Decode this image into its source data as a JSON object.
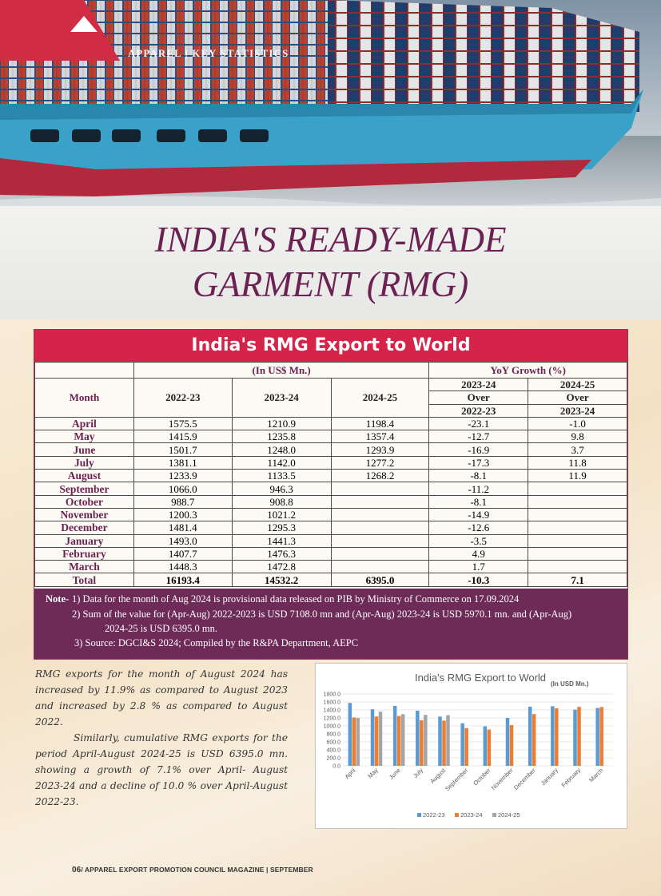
{
  "section_label": "APPAREL | KEY STATISTICS",
  "title_line1": "INDIA'S READY-MADE",
  "title_line2": "GARMENT (RMG)",
  "table": {
    "title": "India's RMG Export to World",
    "unit_header": "(In US$ Mn.)",
    "growth_header": "YoY Growth (%)",
    "month_header": "Month",
    "years": [
      "2022-23",
      "2023-24",
      "2024-25"
    ],
    "growth_cols": [
      {
        "top": "2023-24",
        "mid": "Over",
        "bottom": "2022-23"
      },
      {
        "top": "2024-25",
        "mid": "Over",
        "bottom": "2023-24"
      }
    ],
    "rows": [
      {
        "month": "April",
        "y1": "1575.5",
        "y2": "1210.9",
        "y3": "1198.4",
        "g1": "-23.1",
        "g2": "-1.0"
      },
      {
        "month": "May",
        "y1": "1415.9",
        "y2": "1235.8",
        "y3": "1357.4",
        "g1": "-12.7",
        "g2": "9.8"
      },
      {
        "month": "June",
        "y1": "1501.7",
        "y2": "1248.0",
        "y3": "1293.9",
        "g1": "-16.9",
        "g2": "3.7"
      },
      {
        "month": "July",
        "y1": "1381.1",
        "y2": "1142.0",
        "y3": "1277.2",
        "g1": "-17.3",
        "g2": "11.8"
      },
      {
        "month": "August",
        "y1": "1233.9",
        "y2": "1133.5",
        "y3": "1268.2",
        "g1": "-8.1",
        "g2": "11.9"
      },
      {
        "month": "September",
        "y1": "1066.0",
        "y2": "946.3",
        "y3": "",
        "g1": "-11.2",
        "g2": ""
      },
      {
        "month": "October",
        "y1": "988.7",
        "y2": "908.8",
        "y3": "",
        "g1": "-8.1",
        "g2": ""
      },
      {
        "month": "November",
        "y1": "1200.3",
        "y2": "1021.2",
        "y3": "",
        "g1": "-14.9",
        "g2": ""
      },
      {
        "month": "December",
        "y1": "1481.4",
        "y2": "1295.3",
        "y3": "",
        "g1": "-12.6",
        "g2": ""
      },
      {
        "month": "January",
        "y1": "1493.0",
        "y2": "1441.3",
        "y3": "",
        "g1": "-3.5",
        "g2": ""
      },
      {
        "month": "February",
        "y1": "1407.7",
        "y2": "1476.3",
        "y3": "",
        "g1": "4.9",
        "g2": ""
      },
      {
        "month": "March",
        "y1": "1448.3",
        "y2": "1472.8",
        "y3": "",
        "g1": "1.7",
        "g2": ""
      }
    ],
    "total": {
      "month": "Total",
      "y1": "16193.4",
      "y2": "14532.2",
      "y3": "6395.0",
      "g1": "-10.3",
      "g2": "7.1"
    }
  },
  "notes": {
    "label": "Note-",
    "n1": "1) Data for the month of Aug 2024 is provisional data released on PIB by Ministry of Commerce on 17.09.2024",
    "n2a": "2) Sum of the value for (Apr-Aug) 2022-2023 is USD 7108.0 mn and (Apr-Aug) 2023-24 is USD 5970.1 mn. and (Apr-Aug)",
    "n2b": "2024-25 is USD 6395.0 mn.",
    "n3": "3) Source: DGCI&S 2024; Compiled by the  R&PA Department, AEPC"
  },
  "body": {
    "p1": "RMG exports for the month of August 2024 has increased by 11.9% as compared to August 2023 and increased by 2.8 % as compared to August 2022.",
    "p2": "Similarly, cumulative RMG exports for the period April-August 2024-25 is USD 6395.0 mn. showing a growth of 7.1% over April- August 2023-24 and a decline of 10.0 % over April-August 2022-23."
  },
  "chart_data": {
    "type": "bar",
    "title": "India's RMG Export to World",
    "subtitle": "(In USD Mn.)",
    "categories": [
      "April",
      "May",
      "June",
      "July",
      "August",
      "September",
      "October",
      "November",
      "December",
      "January",
      "February",
      "March"
    ],
    "series": [
      {
        "name": "2022-23",
        "color": "#5b9bd5",
        "values": [
          1575.5,
          1415.9,
          1501.7,
          1381.1,
          1233.9,
          1066.0,
          988.7,
          1200.3,
          1481.4,
          1493.0,
          1407.7,
          1448.3
        ]
      },
      {
        "name": "2023-24",
        "color": "#ed7d31",
        "values": [
          1210.9,
          1235.8,
          1248.0,
          1142.0,
          1133.5,
          946.3,
          908.8,
          1021.2,
          1295.3,
          1441.3,
          1476.3,
          1472.8
        ]
      },
      {
        "name": "2024-25",
        "color": "#a5a5a5",
        "values": [
          1198.4,
          1357.4,
          1293.9,
          1277.2,
          1268.2,
          null,
          null,
          null,
          null,
          null,
          null,
          null
        ]
      }
    ],
    "ylim": [
      0,
      1800
    ],
    "yticks": [
      "0.0",
      "200.0",
      "400.0",
      "600.0",
      "800.0",
      "1000.0",
      "1200.0",
      "1400.0",
      "1600.0",
      "1800.0"
    ],
    "legend": "bottom",
    "grid": true
  },
  "footer": {
    "page": "06",
    "text": "/ APPAREL EXPORT PROMOTION COUNCIL MAGAZINE | SEPTEMBER"
  }
}
